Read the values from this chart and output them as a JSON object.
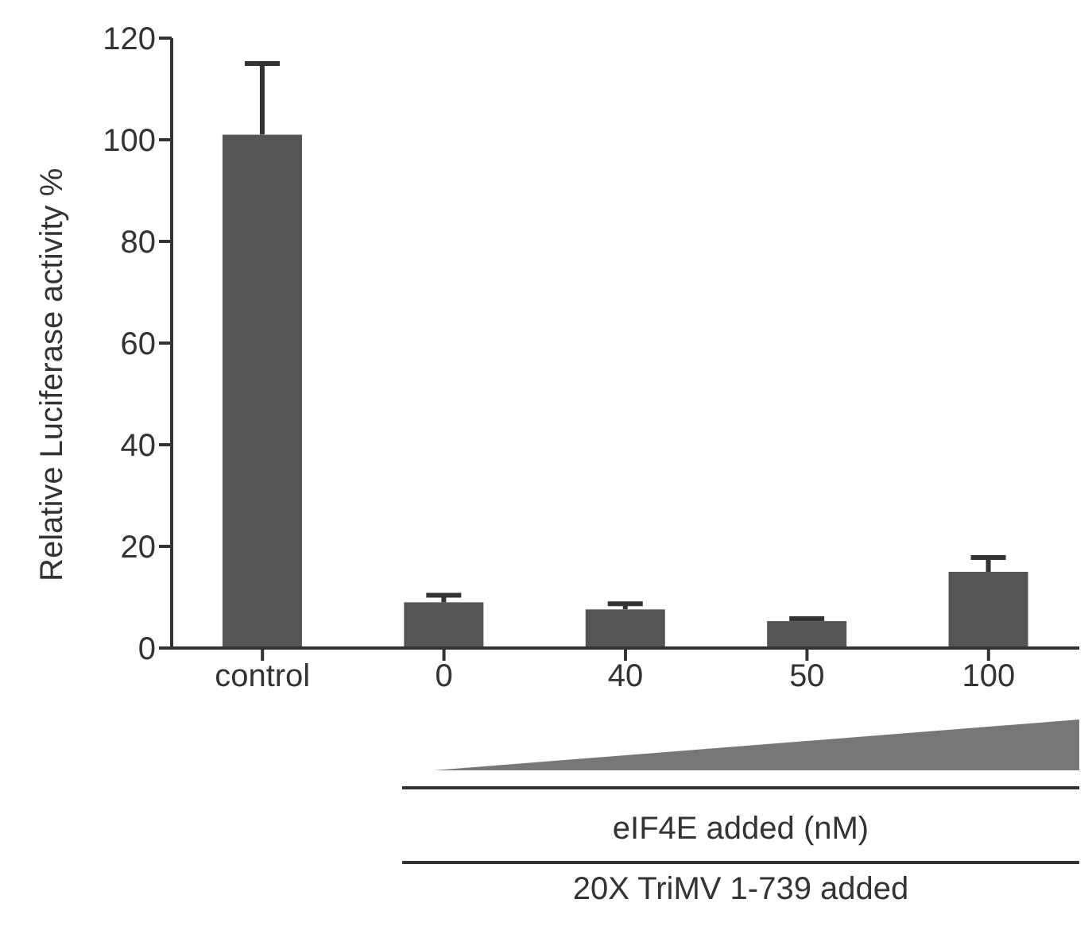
{
  "chart_data": {
    "type": "bar",
    "ylabel": "Relative Luciferase activity %",
    "categories": [
      "control",
      "0",
      "40",
      "50",
      "100"
    ],
    "values": [
      101,
      9,
      7.6,
      5.3,
      15
    ],
    "errors": [
      [
        101,
        115
      ],
      [
        9,
        10.4
      ],
      [
        7.6,
        8.7
      ],
      [
        5.3,
        5.8
      ],
      [
        15,
        17.8
      ]
    ],
    "color": "#555555",
    "ylim": [
      0,
      120
    ],
    "yticks": [
      0,
      20,
      40,
      60,
      80,
      100,
      120
    ],
    "grid": false,
    "legend": false,
    "annotations": [
      "eIF4E added (nM)",
      "20X TriMV 1-739 added"
    ]
  }
}
